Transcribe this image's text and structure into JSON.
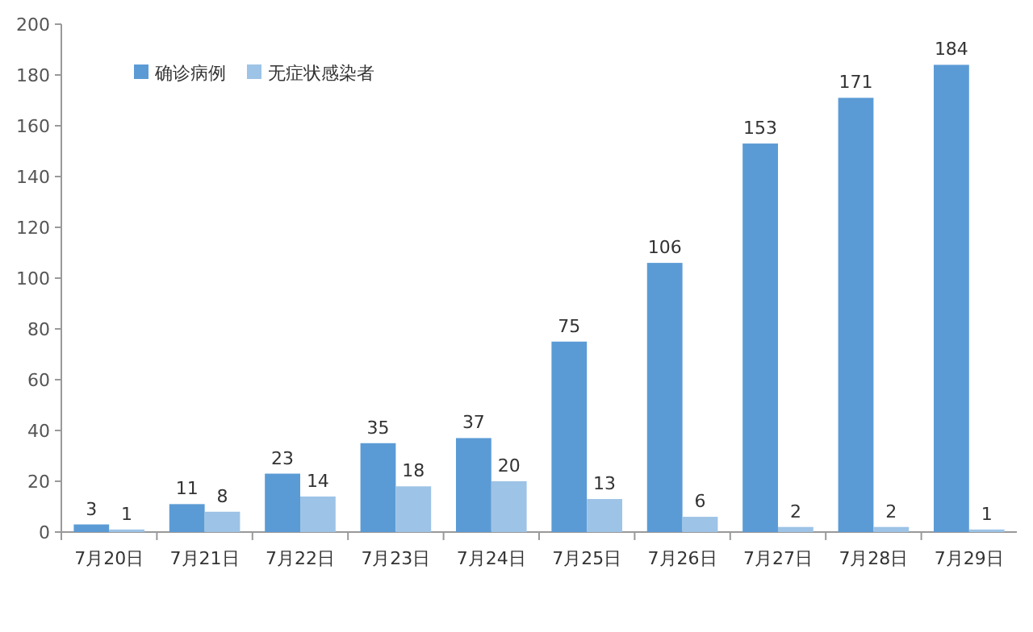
{
  "chart_data": {
    "type": "bar",
    "categories": [
      "7月20日",
      "7月21日",
      "7月22日",
      "7月23日",
      "7月24日",
      "7月25日",
      "7月26日",
      "7月27日",
      "7月28日",
      "7月29日"
    ],
    "series": [
      {
        "name": "确诊病例",
        "color": "#5b9bd5",
        "values": [
          3,
          11,
          23,
          35,
          37,
          75,
          106,
          153,
          171,
          184
        ]
      },
      {
        "name": "无症状感染者",
        "color": "#9dc3e6",
        "values": [
          1,
          8,
          14,
          18,
          20,
          13,
          6,
          2,
          2,
          1
        ]
      }
    ],
    "ylim": [
      0,
      200
    ],
    "yticks": [
      0,
      20,
      40,
      60,
      80,
      100,
      120,
      140,
      160,
      180,
      200
    ],
    "grid": false,
    "legend": "top left",
    "data_labels": true
  }
}
